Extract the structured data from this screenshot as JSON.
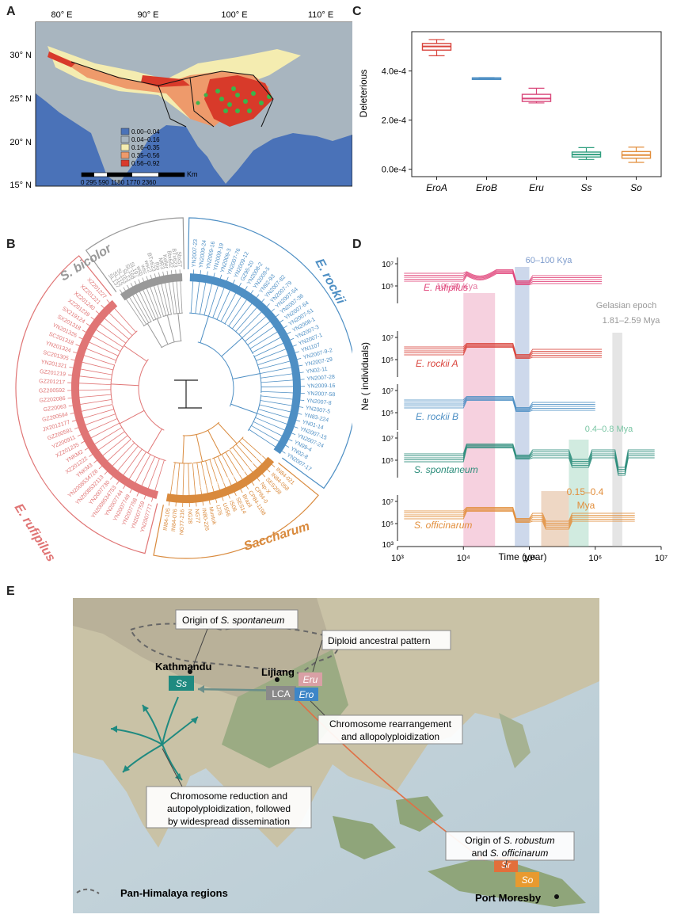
{
  "panel_labels": {
    "a": "A",
    "b": "B",
    "c": "C",
    "d": "D",
    "e": "E"
  },
  "panel_a": {
    "lon_ticks": [
      "80° E",
      "90° E",
      "100° E",
      "110° E"
    ],
    "lat_ticks": [
      "30° N",
      "25° N",
      "20° N",
      "15° N"
    ],
    "legend": [
      {
        "label": "0.00–0.04",
        "color": "#4a72b8"
      },
      {
        "label": "0.04–0.16",
        "color": "#a8b5bf"
      },
      {
        "label": "0.16–0.35",
        "color": "#f4ecb0"
      },
      {
        "label": "0.35–0.56",
        "color": "#ee9a6b"
      },
      {
        "label": "0.56–0.92",
        "color": "#d83a2a"
      }
    ],
    "scale_labels": "0 295 590 1180 1770 2360",
    "scale_unit": "Km",
    "colors": {
      "ocean": "#4a72b8",
      "land": "#a8b5bf",
      "points": "#3cb44b"
    }
  },
  "chart_data": {
    "type": "box",
    "ylabel": "Deleterious",
    "categories": [
      "EroA",
      "EroB",
      "Eru",
      "Ss",
      "So"
    ],
    "yticks": [
      "0.0e-4",
      "2.0e-4",
      "4.0e-4"
    ],
    "ylim": [
      -0.3,
      5.6
    ],
    "colors": [
      "#d9443c",
      "#4e8fc4",
      "#d9477a",
      "#2e9e7e",
      "#e28e3b"
    ],
    "boxes": [
      {
        "min": 4.62,
        "q1": 4.85,
        "median": 5.0,
        "q3": 5.12,
        "max": 5.28
      },
      {
        "min": 3.69,
        "q1": 3.7,
        "median": 3.71,
        "q3": 3.72,
        "max": 3.73
      },
      {
        "min": 2.7,
        "q1": 2.76,
        "median": 2.88,
        "q3": 3.05,
        "max": 3.3
      },
      {
        "min": 0.4,
        "q1": 0.5,
        "median": 0.6,
        "q3": 0.7,
        "max": 0.88
      },
      {
        "min": 0.28,
        "q1": 0.45,
        "median": 0.58,
        "q3": 0.72,
        "max": 0.9
      }
    ]
  },
  "panel_b": {
    "clades": {
      "bicolor": "S. bicolor",
      "erockii": "E. rockii",
      "erufipilus": "E. rufipilus",
      "saccharum": "Saccharum"
    },
    "subclades": [
      "S. robustum",
      "S. officinarum",
      "S. spontaneum"
    ],
    "erockii_taxa": [
      "YN2007-23",
      "YN2009-24",
      "YN2009-16",
      "YN2009-19",
      "YN2009-3",
      "YN2007-76",
      "YN2009-12",
      "GZ95-20",
      "YN2008-2",
      "YN2009-5",
      "YN92-93",
      "YN2007-82",
      "YN2007-79",
      "YN2007-54",
      "YN2007-36",
      "YN2007-64",
      "YN2007-51",
      "YN2008-1",
      "YN2007-3",
      "YN2007-1",
      "YN1107",
      "YN2007-9-2",
      "YN2007-29",
      "YN02-11",
      "YN2007-28",
      "YN2009-16",
      "YN2007-58",
      "YN2007-8",
      "YN2007-5",
      "YN83-224",
      "YN01-14",
      "YN2007-15",
      "YN2007-24",
      "YN99-4",
      "YN02-8",
      "YN2007-17"
    ],
    "rufipilus_taxa": [
      "YN2007777",
      "YN2007759",
      "YN2007758",
      "YN2007749",
      "YN2007744",
      "YN2008534753",
      "YN2007730",
      "YN2008532113",
      "YN2008534728",
      "YNKM3",
      "XZ201222",
      "YNKM2",
      "XZ201235",
      "YZ200911",
      "GZ200591",
      "JX2012177",
      "GZ200594",
      "GZ20063",
      "GZ202086",
      "GZ200592",
      "GZ201217",
      "GZ201219",
      "YN201321",
      "SC201305",
      "YN201324",
      "SC201318",
      "YN201326",
      "SX201318",
      "SX219124",
      "XZ201239",
      "XZ201240",
      "XZ201221",
      "XZ201227"
    ],
    "bicolor_taxa": [
      "SL137",
      "SL115",
      "SL153",
      "SL23",
      "SL168",
      "SL197",
      "wsb",
      "wsc",
      "wsc2",
      "BTx623",
      "Rio",
      "MR3",
      "Keller",
      "Btx642",
      "BTx623",
      "Sbx57"
    ],
    "saccharum_taxa": [
      "IN84-021",
      "IN84-058",
      "SES208",
      "Np-X",
      "CP84-0",
      "CP84-1198",
      "Brazil",
      "SES14",
      "IS06",
      "US56",
      "IJ76",
      "Muntok",
      "IN80-226",
      "NG77",
      "NG28",
      "NG77-216",
      "IN84-076",
      "IN84-105"
    ]
  },
  "panel_d": {
    "ylabel": "Ne ( individuals)",
    "xlabel": "Time (year)",
    "xticks": [
      "10³",
      "10⁴",
      "10⁵",
      "10⁶",
      "10⁷"
    ],
    "yticks": [
      "10⁷",
      "10⁵",
      "10³"
    ],
    "series": [
      {
        "name": "E. rufipilus",
        "color": "#e0447a"
      },
      {
        "name": "E. rockii A",
        "color": "#d9443c"
      },
      {
        "name": "E. rockii B",
        "color": "#4e8fc4"
      },
      {
        "name": "S. spontaneum",
        "color": "#2a8c7a"
      },
      {
        "name": "S. officinarum",
        "color": "#e28e3b"
      }
    ],
    "annotations": [
      {
        "text": "10–30 Kya",
        "color": "#e57aa2"
      },
      {
        "text": "60–100 Kya",
        "color": "#7d9bcc"
      },
      {
        "text": "Gelasian epoch",
        "color": "#999"
      },
      {
        "text": "1.81–2.59 Mya",
        "color": "#999"
      },
      {
        "text": "0.4–0.8 Mya",
        "color": "#7bc6a5"
      },
      {
        "text": "0.15–0.4",
        "color": "#e28e3b"
      },
      {
        "text": "Mya",
        "color": "#e28e3b"
      }
    ]
  },
  "panel_e": {
    "callouts": {
      "origin_ss": [
        "Origin of ",
        "S. spontaneum"
      ],
      "diploid": "Diploid ancestral pattern",
      "rearr": [
        "Chromosome rearrangement",
        "and allopolyploidization"
      ],
      "reduction": [
        "Chromosome reduction and",
        "autopolyploidization, followed",
        "by widespread dissemination"
      ],
      "origin_so": [
        "Origin of ",
        "S. robustum",
        "and ",
        "S. officinarum"
      ]
    },
    "places": {
      "kathmandu": "Kathmandu",
      "lijiang": "Lijiang",
      "port_moresby": "Port Moresby"
    },
    "tags": {
      "ss": "Ss",
      "lca": "LCA",
      "eru": "Eru",
      "ero": "Ero",
      "sr": "Sr",
      "so": "So"
    },
    "legend": "Pan-Himalaya regions"
  }
}
